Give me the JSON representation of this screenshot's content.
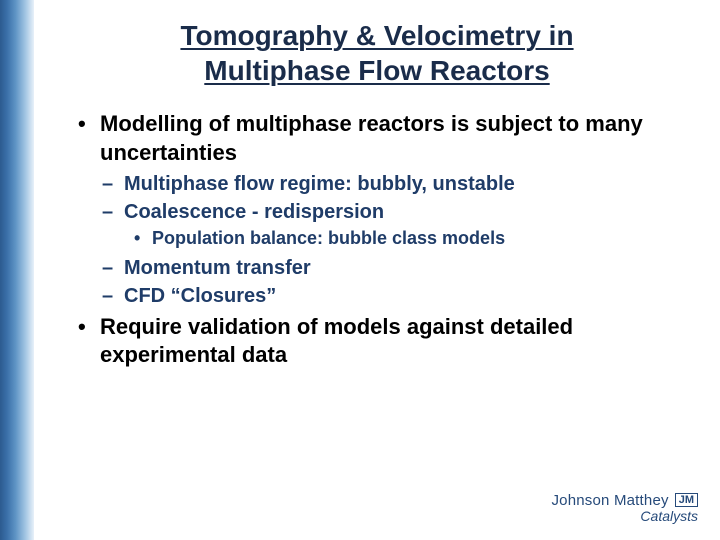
{
  "title": {
    "line1": "Tomography & Velocimetry in",
    "line2": "Multiphase Flow Reactors"
  },
  "colors": {
    "title_text": "#1a2c4a",
    "body_text": "#000000",
    "sub_text": "#1f3c68",
    "bar_gradient_start": "#2c5a8f",
    "bar_gradient_end": "#e8f1f9",
    "background": "#ffffff",
    "logo_color": "#264a7a"
  },
  "typography": {
    "title_fontsize_pt": 21,
    "body_fontsize_pt": 17,
    "sub_fontsize_pt": 15,
    "subsub_fontsize_pt": 14,
    "font_family": "Arial"
  },
  "bullets": [
    {
      "text": "Modelling of multiphase reactors is subject to many uncertainties",
      "sub": [
        {
          "text": "Multiphase flow regime: bubbly, unstable"
        },
        {
          "text": "Coalescence - redispersion",
          "subsub": [
            {
              "text": "Population balance: bubble class models"
            }
          ]
        },
        {
          "text": "Momentum transfer"
        },
        {
          "text": "CFD “Closures”"
        }
      ]
    },
    {
      "text": "Require validation of models against detailed experimental data"
    }
  ],
  "logo": {
    "mark": "JM",
    "company": "Johnson Matthey",
    "subtitle": "Catalysts"
  }
}
